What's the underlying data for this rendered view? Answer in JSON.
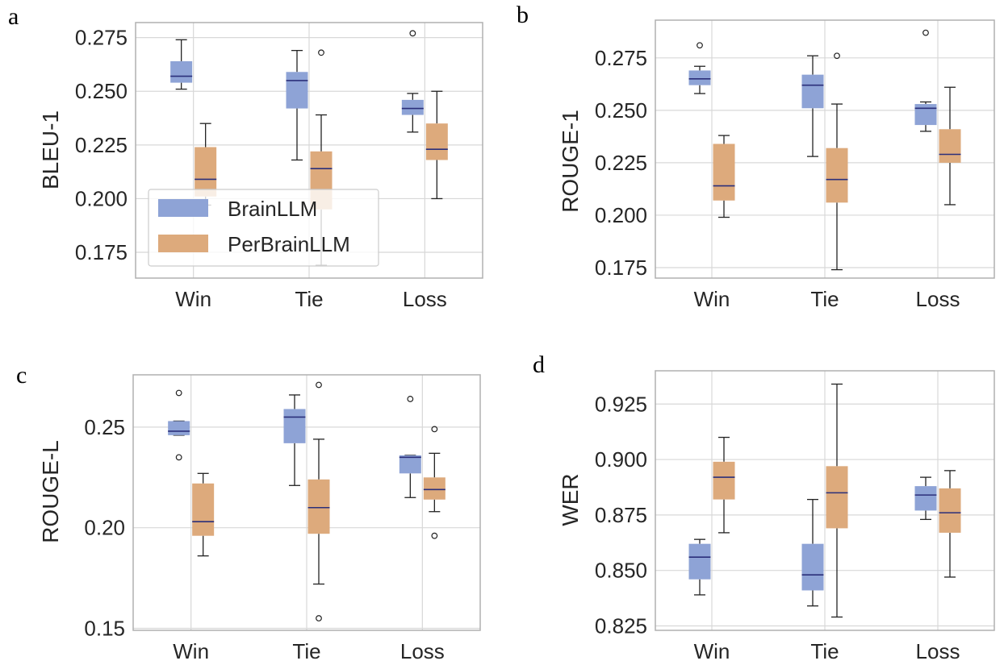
{
  "colors": {
    "brainllm": "#8ea3d6",
    "perbrainllm": "#ddaa7c",
    "median": "#2b2f7a",
    "grid": "#d8d8d8",
    "axis": "#b0b0b0"
  },
  "chart_data": [
    {
      "panel": "a",
      "type": "box",
      "ylabel": "BLEU-1",
      "categories": [
        "Win",
        "Tie",
        "Loss"
      ],
      "yticks": [
        "0.175",
        "0.200",
        "0.225",
        "0.250",
        "0.275"
      ],
      "ylim": [
        0.163,
        0.282
      ],
      "legend": {
        "placement": "lower-left",
        "entries": [
          "BrainLLM",
          "PerBrainLLM"
        ]
      },
      "series": [
        {
          "name": "BrainLLM",
          "boxes": [
            {
              "whislo": 0.251,
              "q1": 0.254,
              "med": 0.257,
              "q3": 0.264,
              "whishi": 0.274,
              "fliers": []
            },
            {
              "whislo": 0.218,
              "q1": 0.242,
              "med": 0.255,
              "q3": 0.259,
              "whishi": 0.269,
              "fliers": []
            },
            {
              "whislo": 0.231,
              "q1": 0.239,
              "med": 0.242,
              "q3": 0.246,
              "whishi": 0.249,
              "fliers": [
                0.277
              ]
            }
          ]
        },
        {
          "name": "PerBrainLLM",
          "boxes": [
            {
              "whislo": 0.197,
              "q1": 0.201,
              "med": 0.209,
              "q3": 0.224,
              "whishi": 0.235,
              "fliers": []
            },
            {
              "whislo": 0.169,
              "q1": 0.195,
              "med": 0.214,
              "q3": 0.222,
              "whishi": 0.239,
              "fliers": [
                0.268
              ]
            },
            {
              "whislo": 0.2,
              "q1": 0.218,
              "med": 0.223,
              "q3": 0.235,
              "whishi": 0.25,
              "fliers": []
            }
          ]
        }
      ]
    },
    {
      "panel": "b",
      "type": "box",
      "ylabel": "ROUGE-1",
      "categories": [
        "Win",
        "Tie",
        "Loss"
      ],
      "yticks": [
        "0.175",
        "0.200",
        "0.225",
        "0.250",
        "0.275"
      ],
      "ylim": [
        0.17,
        0.293
      ],
      "series": [
        {
          "name": "BrainLLM",
          "boxes": [
            {
              "whislo": 0.258,
              "q1": 0.262,
              "med": 0.265,
              "q3": 0.269,
              "whishi": 0.271,
              "fliers": [
                0.281
              ]
            },
            {
              "whislo": 0.228,
              "q1": 0.251,
              "med": 0.262,
              "q3": 0.267,
              "whishi": 0.276,
              "fliers": []
            },
            {
              "whislo": 0.24,
              "q1": 0.243,
              "med": 0.251,
              "q3": 0.253,
              "whishi": 0.254,
              "fliers": [
                0.287
              ]
            }
          ]
        },
        {
          "name": "PerBrainLLM",
          "boxes": [
            {
              "whislo": 0.199,
              "q1": 0.207,
              "med": 0.214,
              "q3": 0.234,
              "whishi": 0.238,
              "fliers": []
            },
            {
              "whislo": 0.174,
              "q1": 0.206,
              "med": 0.217,
              "q3": 0.232,
              "whishi": 0.253,
              "fliers": [
                0.276
              ]
            },
            {
              "whislo": 0.205,
              "q1": 0.225,
              "med": 0.229,
              "q3": 0.241,
              "whishi": 0.261,
              "fliers": []
            }
          ]
        }
      ]
    },
    {
      "panel": "c",
      "type": "box",
      "ylabel": "ROUGE-L",
      "categories": [
        "Win",
        "Tie",
        "Loss"
      ],
      "yticks": [
        "0.15",
        "0.20",
        "0.25"
      ],
      "ylim": [
        0.149,
        0.276
      ],
      "series": [
        {
          "name": "BrainLLM",
          "boxes": [
            {
              "whislo": 0.246,
              "q1": 0.246,
              "med": 0.248,
              "q3": 0.253,
              "whishi": 0.253,
              "fliers": [
                0.267,
                0.235
              ]
            },
            {
              "whislo": 0.221,
              "q1": 0.242,
              "med": 0.255,
              "q3": 0.259,
              "whishi": 0.266,
              "fliers": []
            },
            {
              "whislo": 0.215,
              "q1": 0.227,
              "med": 0.235,
              "q3": 0.236,
              "whishi": 0.236,
              "fliers": [
                0.264
              ]
            }
          ]
        },
        {
          "name": "PerBrainLLM",
          "boxes": [
            {
              "whislo": 0.186,
              "q1": 0.196,
              "med": 0.203,
              "q3": 0.222,
              "whishi": 0.227,
              "fliers": []
            },
            {
              "whislo": 0.172,
              "q1": 0.197,
              "med": 0.21,
              "q3": 0.224,
              "whishi": 0.244,
              "fliers": [
                0.271,
                0.155
              ]
            },
            {
              "whislo": 0.208,
              "q1": 0.214,
              "med": 0.219,
              "q3": 0.225,
              "whishi": 0.237,
              "fliers": [
                0.249,
                0.196
              ]
            }
          ]
        }
      ]
    },
    {
      "panel": "d",
      "type": "box",
      "ylabel": "WER",
      "categories": [
        "Win",
        "Tie",
        "Loss"
      ],
      "yticks": [
        "0.825",
        "0.850",
        "0.875",
        "0.900",
        "0.925"
      ],
      "ylim": [
        0.823,
        0.94
      ],
      "series": [
        {
          "name": "BrainLLM",
          "boxes": [
            {
              "whislo": 0.839,
              "q1": 0.846,
              "med": 0.856,
              "q3": 0.862,
              "whishi": 0.864,
              "fliers": []
            },
            {
              "whislo": 0.834,
              "q1": 0.841,
              "med": 0.848,
              "q3": 0.862,
              "whishi": 0.882,
              "fliers": []
            },
            {
              "whislo": 0.873,
              "q1": 0.877,
              "med": 0.884,
              "q3": 0.888,
              "whishi": 0.892,
              "fliers": []
            }
          ]
        },
        {
          "name": "PerBrainLLM",
          "boxes": [
            {
              "whislo": 0.867,
              "q1": 0.882,
              "med": 0.892,
              "q3": 0.899,
              "whishi": 0.91,
              "fliers": []
            },
            {
              "whislo": 0.829,
              "q1": 0.869,
              "med": 0.885,
              "q3": 0.897,
              "whishi": 0.934,
              "fliers": []
            },
            {
              "whislo": 0.847,
              "q1": 0.867,
              "med": 0.876,
              "q3": 0.887,
              "whishi": 0.895,
              "fliers": []
            }
          ]
        }
      ]
    }
  ]
}
